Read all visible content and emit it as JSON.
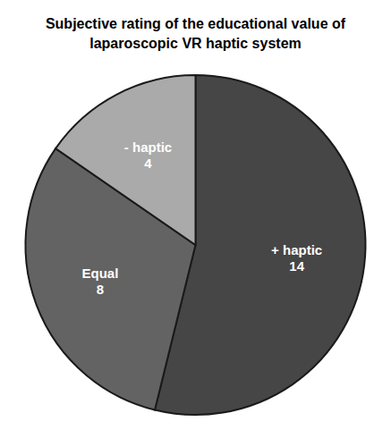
{
  "chart_data": {
    "type": "pie",
    "title": "Subjective rating of the educational value of\nlaparoscopic VR haptic system",
    "categories": [
      "+ haptic",
      "Equal",
      "- haptic"
    ],
    "values": [
      14,
      8,
      4
    ],
    "colors": [
      "#464646",
      "#636363",
      "#aaaaaa"
    ],
    "data_labels": true
  }
}
